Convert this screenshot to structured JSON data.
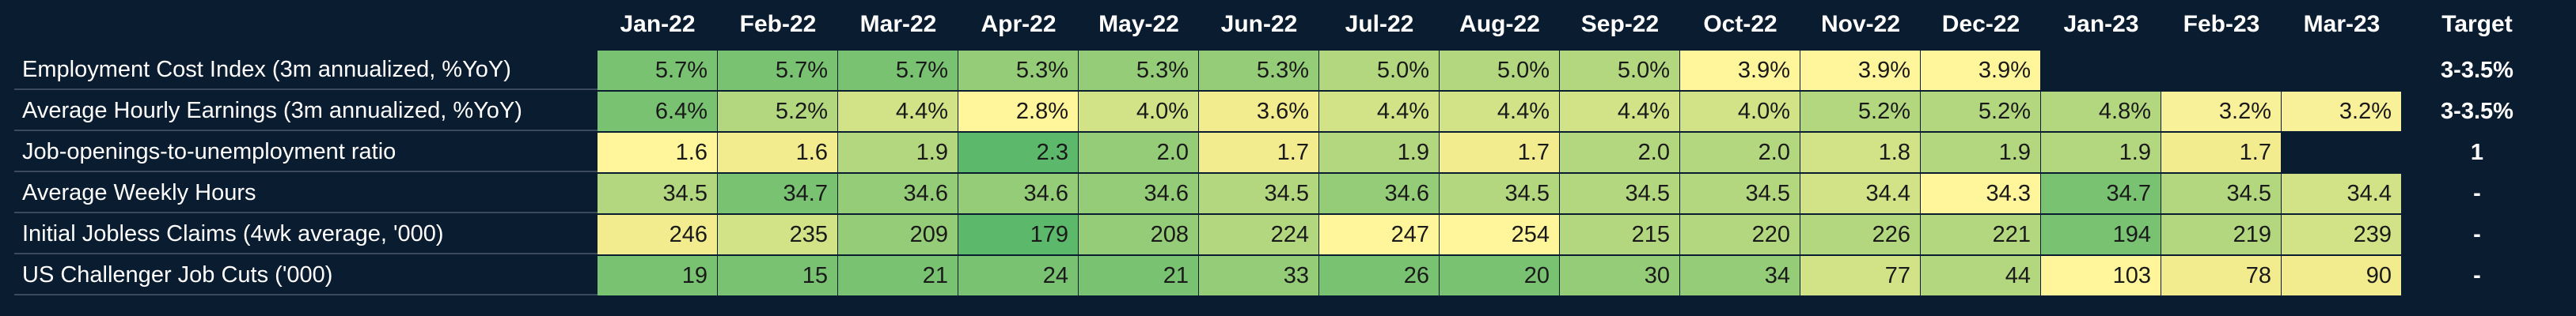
{
  "header": {
    "columns": [
      "Jan-22",
      "Feb-22",
      "Mar-22",
      "Apr-22",
      "May-22",
      "Jun-22",
      "Jul-22",
      "Aug-22",
      "Sep-22",
      "Oct-22",
      "Nov-22",
      "Dec-22",
      "Jan-23",
      "Feb-23",
      "Mar-23"
    ],
    "target": "Target"
  },
  "empty_color": "#0a1c30",
  "rows": [
    {
      "label": "Employment Cost Index (3m annualized, %YoY)",
      "target": "3-3.5%",
      "cells": [
        "5.7%",
        "5.7%",
        "5.7%",
        "5.3%",
        "5.3%",
        "5.3%",
        "5.0%",
        "5.0%",
        "5.0%",
        "3.9%",
        "3.9%",
        "3.9%",
        null,
        null,
        null
      ],
      "colors": [
        "#78c272",
        "#78c272",
        "#78c272",
        "#95cc78",
        "#95cc78",
        "#95cc78",
        "#b3d77f",
        "#b3d77f",
        "#b3d77f",
        "#fff59a",
        "#fff59a",
        "#fff59a",
        null,
        null,
        null
      ]
    },
    {
      "label": "Average Hourly Earnings (3m annualized, %YoY)",
      "target": "3-3.5%",
      "cells": [
        "6.4%",
        "5.2%",
        "4.4%",
        "2.8%",
        "4.0%",
        "3.6%",
        "4.4%",
        "4.4%",
        "4.4%",
        "4.0%",
        "5.2%",
        "5.2%",
        "4.8%",
        "3.2%",
        "3.2%"
      ],
      "colors": [
        "#78c272",
        "#b3d77f",
        "#d2e287",
        "#fff59a",
        "#d2e287",
        "#f2ec8f",
        "#d2e287",
        "#d2e287",
        "#d2e287",
        "#d2e287",
        "#b3d77f",
        "#b3d77f",
        "#b3d77f",
        "#f9f09a",
        "#f9f09a"
      ]
    },
    {
      "label": "Job-openings-to-unemployment ratio",
      "target": "1",
      "cells": [
        "1.6",
        "1.6",
        "1.9",
        "2.3",
        "2.0",
        "1.7",
        "1.9",
        "1.7",
        "2.0",
        "2.0",
        "1.8",
        "1.9",
        "1.9",
        "1.7",
        null
      ],
      "colors": [
        "#fff59a",
        "#f2ec8f",
        "#b3d77f",
        "#5cb86a",
        "#95cc78",
        "#f2ec8f",
        "#b3d77f",
        "#f2ec8f",
        "#b3d77f",
        "#b3d77f",
        "#d2e287",
        "#b3d77f",
        "#b3d77f",
        "#f2ec8f",
        null
      ]
    },
    {
      "label": "Average Weekly Hours",
      "target": "-",
      "cells": [
        "34.5",
        "34.7",
        "34.6",
        "34.6",
        "34.6",
        "34.5",
        "34.6",
        "34.5",
        "34.5",
        "34.5",
        "34.4",
        "34.3",
        "34.7",
        "34.5",
        "34.4"
      ],
      "colors": [
        "#b3d77f",
        "#78c272",
        "#95cc78",
        "#95cc78",
        "#95cc78",
        "#b3d77f",
        "#95cc78",
        "#b3d77f",
        "#b3d77f",
        "#b3d77f",
        "#d2e287",
        "#fff59a",
        "#78c272",
        "#b3d77f",
        "#d2e287"
      ]
    },
    {
      "label": "Initial Jobless Claims (4wk average, '000)",
      "target": "-",
      "cells": [
        "246",
        "235",
        "209",
        "179",
        "208",
        "224",
        "247",
        "254",
        "215",
        "220",
        "226",
        "221",
        "194",
        "219",
        "239"
      ],
      "colors": [
        "#f2ec8f",
        "#d2e287",
        "#95cc78",
        "#5cb86a",
        "#95cc78",
        "#b3d77f",
        "#fff59a",
        "#fff59a",
        "#b3d77f",
        "#b3d77f",
        "#b3d77f",
        "#b3d77f",
        "#78c272",
        "#b3d77f",
        "#d2e287"
      ]
    },
    {
      "label": "US Challenger Job Cuts ('000)",
      "target": "-",
      "cells": [
        "19",
        "15",
        "21",
        "24",
        "21",
        "33",
        "26",
        "20",
        "30",
        "34",
        "77",
        "44",
        "103",
        "78",
        "90"
      ],
      "colors": [
        "#78c272",
        "#78c272",
        "#78c272",
        "#78c272",
        "#78c272",
        "#95cc78",
        "#78c272",
        "#78c272",
        "#95cc78",
        "#95cc78",
        "#d2e287",
        "#b3d77f",
        "#fff59a",
        "#f2ec8f",
        "#f2ec8f"
      ]
    }
  ]
}
